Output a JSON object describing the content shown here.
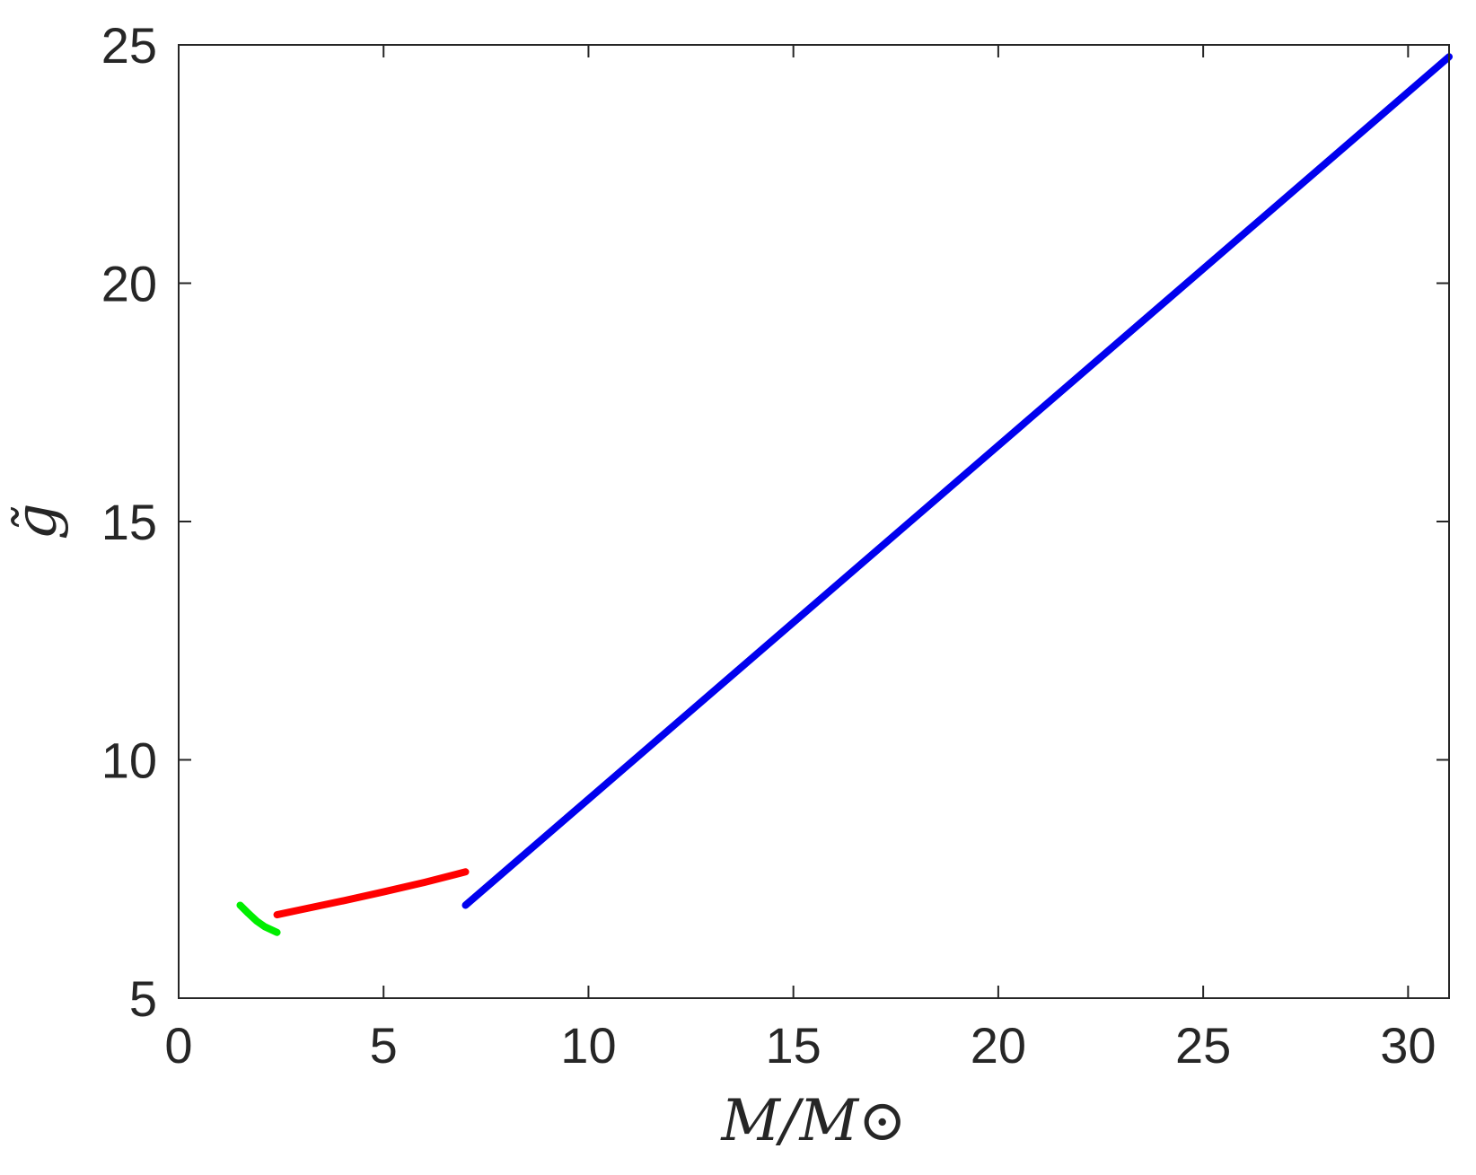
{
  "chart_data": {
    "type": "line",
    "title": "",
    "xlabel": "M/M⊙",
    "ylabel": "g̃",
    "xlim": [
      0,
      31
    ],
    "ylim": [
      5,
      25
    ],
    "xticks": [
      0,
      5,
      10,
      15,
      20,
      25,
      30
    ],
    "yticks": [
      5,
      10,
      15,
      20,
      25
    ],
    "xtick_labels": [
      "0",
      "5",
      "10",
      "15",
      "20",
      "25",
      "30"
    ],
    "ytick_labels": [
      "5",
      "10",
      "15",
      "20",
      "25"
    ],
    "grid": false,
    "legend": "none",
    "series": [
      {
        "color": "#00ee00",
        "x": [
          1.5,
          1.7,
          1.9,
          2.1,
          2.4
        ],
        "y": [
          6.95,
          6.78,
          6.62,
          6.5,
          6.38
        ]
      },
      {
        "color": "#ff0000",
        "x": [
          2.4,
          3.0,
          4.0,
          5.0,
          6.0,
          7.0
        ],
        "y": [
          6.75,
          6.86,
          7.04,
          7.23,
          7.43,
          7.65
        ]
      },
      {
        "color": "#0000ee",
        "x": [
          7.0,
          31.0
        ],
        "y": [
          6.95,
          24.75
        ]
      }
    ]
  }
}
